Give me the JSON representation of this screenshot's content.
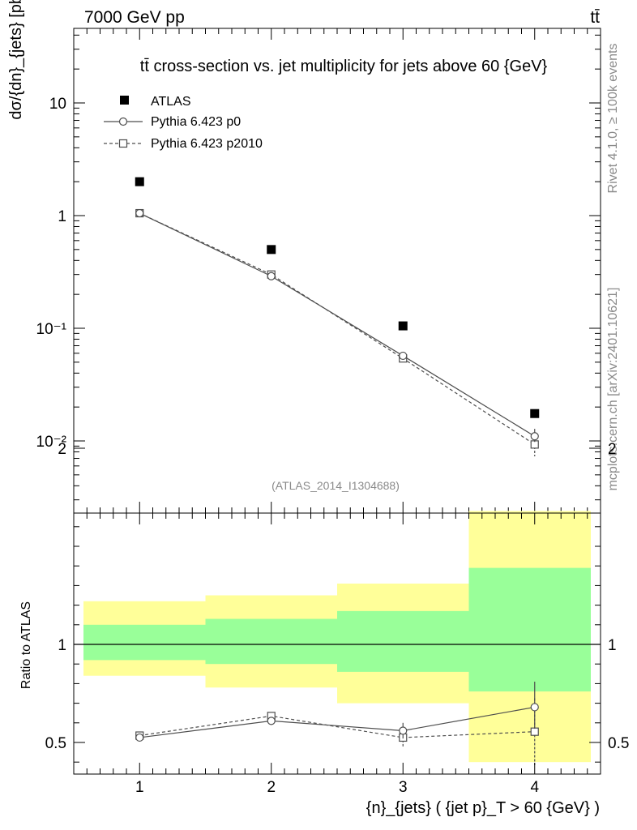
{
  "header": {
    "left_label": "7000 GeV pp",
    "right_label": "tt̄"
  },
  "side_labels": {
    "rivet": "Rivet 4.1.0, ≥ 100k events",
    "mcplots": "mcplots.cern.ch [arXiv:2401.10621]"
  },
  "colors": {
    "band_outer": "#ffff99",
    "band_inner": "#99ff99",
    "mc_line": "#4d4d4d",
    "data_marker": "#000000"
  },
  "chart_data": [
    {
      "type": "scatter",
      "title": "tt̄ cross-section vs. jet multiplicity for jets above 60 {GeV}",
      "ylabel": "dσ/{dn}_{jets} [pb]",
      "yscale": "log",
      "ylim": [
        0.0025,
        50
      ],
      "xlim": [
        0.5,
        4.5
      ],
      "y_ticks": [
        "10",
        "1",
        "10⁻¹",
        "10⁻²"
      ],
      "y_tick_values": [
        10,
        1,
        0.1,
        0.01
      ],
      "watermark": "(ATLAS_2014_I1304688)",
      "x": [
        1,
        2,
        3,
        4
      ],
      "series": [
        {
          "name": "ATLAS",
          "style": "filled-square",
          "values": [
            2.0,
            0.5,
            0.105,
            0.0175
          ]
        },
        {
          "name": "Pythia 6.423 p0",
          "style": "solid-circle",
          "values": [
            1.05,
            0.29,
            0.057,
            0.011
          ],
          "err_low": [
            0.03,
            0.01,
            0.003,
            0.0012
          ],
          "err_high": [
            0.03,
            0.01,
            0.003,
            0.0018
          ]
        },
        {
          "name": "Pythia 6.423 p2010",
          "style": "dashed-square",
          "values": [
            1.05,
            0.3,
            0.054,
            0.0093
          ],
          "err_low": [
            0.03,
            0.012,
            0.003,
            0.002
          ],
          "err_high": [
            0.03,
            0.012,
            0.004,
            0.0012
          ]
        }
      ]
    },
    {
      "type": "line",
      "ylabel": "Ratio to ATLAS",
      "ylim": [
        0.34,
        2.3
      ],
      "xlim": [
        0.5,
        4.5
      ],
      "xlabel": "{n}_{jets} ( {jet p}_T > 60 {GeV} )",
      "x_ticks": [
        "1",
        "2",
        "3",
        "4"
      ],
      "y_ticks": [
        "0.5",
        "1",
        "2"
      ],
      "y_tick_values": [
        0.5,
        1,
        2
      ],
      "reference": 1.0,
      "bands": [
        {
          "x_range": [
            0.5,
            1.5
          ],
          "outer": [
            0.84,
            1.22
          ],
          "inner": [
            0.92,
            1.1
          ]
        },
        {
          "x_range": [
            1.5,
            2.5
          ],
          "outer": [
            0.78,
            1.25
          ],
          "inner": [
            0.9,
            1.13
          ]
        },
        {
          "x_range": [
            2.5,
            3.5
          ],
          "outer": [
            0.7,
            1.31
          ],
          "inner": [
            0.86,
            1.17
          ]
        },
        {
          "x_range": [
            3.5,
            4.5
          ],
          "outer": [
            0.4,
            1.68
          ],
          "inner": [
            0.76,
            1.39
          ]
        }
      ],
      "x": [
        1,
        2,
        3,
        4
      ],
      "series": [
        {
          "name": "Pythia 6.423 p0",
          "style": "solid-circle",
          "values": [
            0.525,
            0.61,
            0.56,
            0.68
          ],
          "err_low": [
            0.01,
            0.02,
            0.04,
            0.11
          ],
          "err_high": [
            0.01,
            0.02,
            0.04,
            0.13
          ]
        },
        {
          "name": "Pythia 6.423 p2010",
          "style": "dashed-square",
          "values": [
            0.535,
            0.635,
            0.525,
            0.555
          ],
          "err_low": [
            0.01,
            0.02,
            0.05,
            0.17
          ],
          "err_high": [
            0.01,
            0.02,
            0.05,
            0.17
          ]
        }
      ]
    }
  ]
}
